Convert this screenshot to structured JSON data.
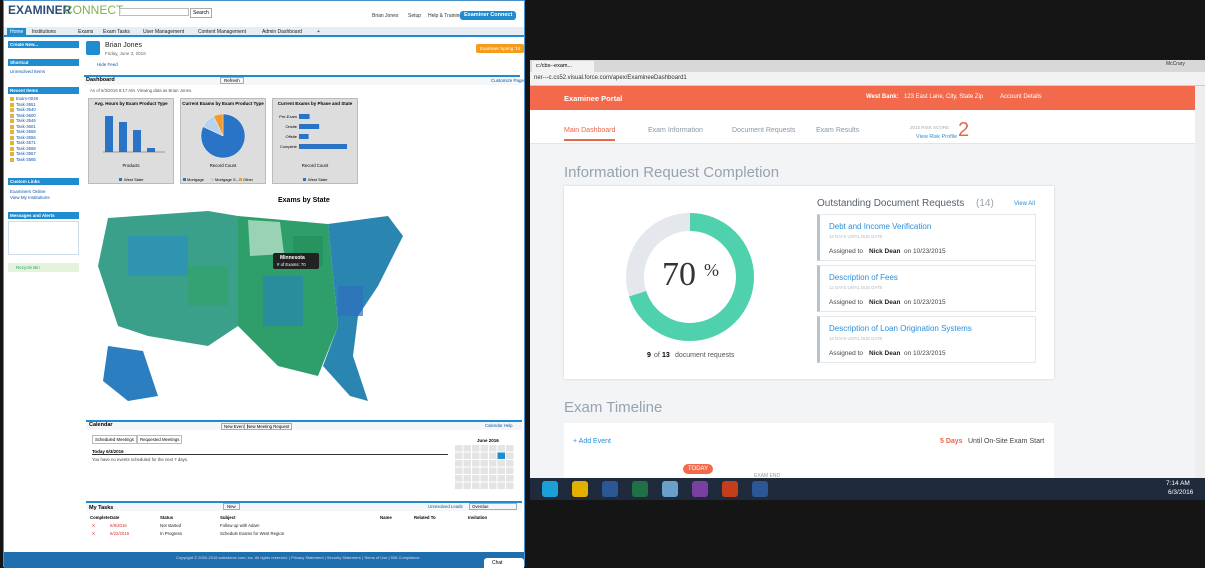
{
  "left": {
    "logo": {
      "a": "EXAMINER",
      "b": "CONNECT"
    },
    "search_button": "Search",
    "top_links": [
      "Brian Jones",
      "Setup",
      "Help & Training"
    ],
    "app_button": "Examiner Connect",
    "tabs": [
      "Home",
      "Institutions",
      "Exams",
      "Exam Tasks",
      "User Management",
      "Content Management",
      "Admin Dashboard",
      "+"
    ],
    "sidebar": {
      "create_new": "Create New...",
      "shortcut": "Shortcut",
      "shortcut_items": [
        "Unresolved Items"
      ],
      "recent": "Recent Items",
      "recent_items": [
        "Exam-0048",
        "Task-3651",
        "Task-3540",
        "Task-3600",
        "Task-3546",
        "Task-3601",
        "Task-3559",
        "Task-3556",
        "Task-3571",
        "Task-3568",
        "Task-3557",
        "Task-3565"
      ],
      "custom": "Custom Links",
      "custom_items": [
        "Examiners Online",
        "View My Institutions"
      ],
      "messages": "Messages and Alerts",
      "recycle": "Recycle Bin"
    },
    "user": {
      "name": "Brian Jones",
      "date": "Friday, June 3, 2016",
      "button": "Examiner Spring '16",
      "hide": "Hide Feed"
    },
    "dashboard": {
      "title": "Dashboard",
      "refresh": "Refresh",
      "customize": "Customize Page",
      "asof": "As of 6/3/2016 8:17 AM. Viewing data as Brian Jones.",
      "charts": [
        {
          "type": "bar",
          "title": "Avg. Hours by Exam Product Type",
          "xlabel": "Products",
          "legend": "West State",
          "color": "#2a74c8",
          "ylim": [
            0,
            4
          ],
          "values": [
            3.6,
            3.0,
            2.2,
            0.4
          ]
        },
        {
          "type": "pie",
          "title": "Current Exams by Exam Product Type",
          "xlabel": "Record Count",
          "legend": [
            "Mortgage",
            "Mortgage S...",
            "Other"
          ],
          "colors": [
            "#2a74c8",
            "#b9d3ee",
            "#f29a2e"
          ],
          "values": [
            82,
            11,
            7
          ]
        },
        {
          "type": "barh",
          "title": "Current Exams by Phase and State",
          "xlabel": "Record Count",
          "legend": "West State",
          "color": "#2a74c8",
          "categories": [
            "Pre-Exam",
            "Onsite",
            "Offsite",
            "Complete"
          ],
          "xlim": [
            0,
            10
          ],
          "values": [
            2.2,
            4.2,
            2.0,
            10
          ]
        }
      ]
    },
    "map": {
      "title": "Exams by State",
      "tooltip_state": "Minnesota",
      "tooltip_value": "# of Exams: 70"
    },
    "calendar": {
      "title": "Calendar",
      "new_event": "New Event",
      "new_meeting": "New Meeting Request",
      "tabs": [
        "Scheduled Meetings",
        "Requested Meetings"
      ],
      "today": "Today 6/3/2016",
      "empty": "You have no events scheduled for the next 7 days.",
      "month": "June 2016",
      "help": "Calendar Help"
    },
    "tasks": {
      "title": "My Tasks",
      "new": "New",
      "filter": "Unresolved Leads",
      "view": "Overdue",
      "columns": [
        "Complete",
        "Date",
        "Status",
        "Subject",
        "Name",
        "Related To",
        "Invitation"
      ],
      "rows": [
        [
          "X",
          "6/8/2016",
          "Not started",
          "Follow up with Adam"
        ],
        [
          "X",
          "6/22/2016",
          "In Progress",
          "Schedule Exams for West Region"
        ]
      ]
    },
    "footer": "Copyright © 2000-2016 salesforce.com, inc. All rights reserved. | Privacy Statement | Security Statement | Terms of Use | 508 Compliance",
    "chat": "Chat"
  },
  "right": {
    "browser_tab": "c:/cbs--exam...",
    "url": "ner---c.cs52.visual.force.com/apex/ExamineeDashboard1",
    "profile": "McCrary",
    "header": {
      "title": "Examinee Portal",
      "bank": "West Bank:",
      "address": "123 East Lane, City, State Zip",
      "account": "Account Details"
    },
    "nav": [
      "Main Dashboard",
      "Exam Information",
      "Document Requests",
      "Exam Results"
    ],
    "risk_label": "2015 RISK SCORE",
    "risk_link": "View Risk Profile",
    "risk_score": "2",
    "completion": {
      "title": "Information Request Completion",
      "percent": 70,
      "percent_sign": "%",
      "done": "9",
      "of": "of",
      "total": "13",
      "label": "document requests"
    },
    "requests": {
      "title": "Outstanding Document Requests",
      "count": "(14)",
      "view_all": "View All",
      "items": [
        {
          "title": "Debt and Income Verification",
          "due": "12 DAYS UNTIL DUE DATE",
          "assigned": "Assigned to",
          "person": "Nick Dean",
          "date": "on 10/23/2015"
        },
        {
          "title": "Description of Fees",
          "due": "12 DAYS UNTIL DUE DATE",
          "assigned": "Assigned to",
          "person": "Nick Dean",
          "date": "on 10/23/2015"
        },
        {
          "title": "Description of Loan Origination Systems",
          "due": "12 DAYS UNTIL DUE DATE",
          "assigned": "Assigned to",
          "person": "Nick Dean",
          "date": "on 10/23/2015"
        }
      ]
    },
    "timeline": {
      "title": "Exam Timeline",
      "add": "+ Add Event",
      "days": "5 Days",
      "until": "Until On-Site Exam Start",
      "today": "TODAY",
      "end": "EXAM END"
    },
    "taskbar": {
      "time": "7:14 AM",
      "date": "6/3/2016"
    }
  }
}
